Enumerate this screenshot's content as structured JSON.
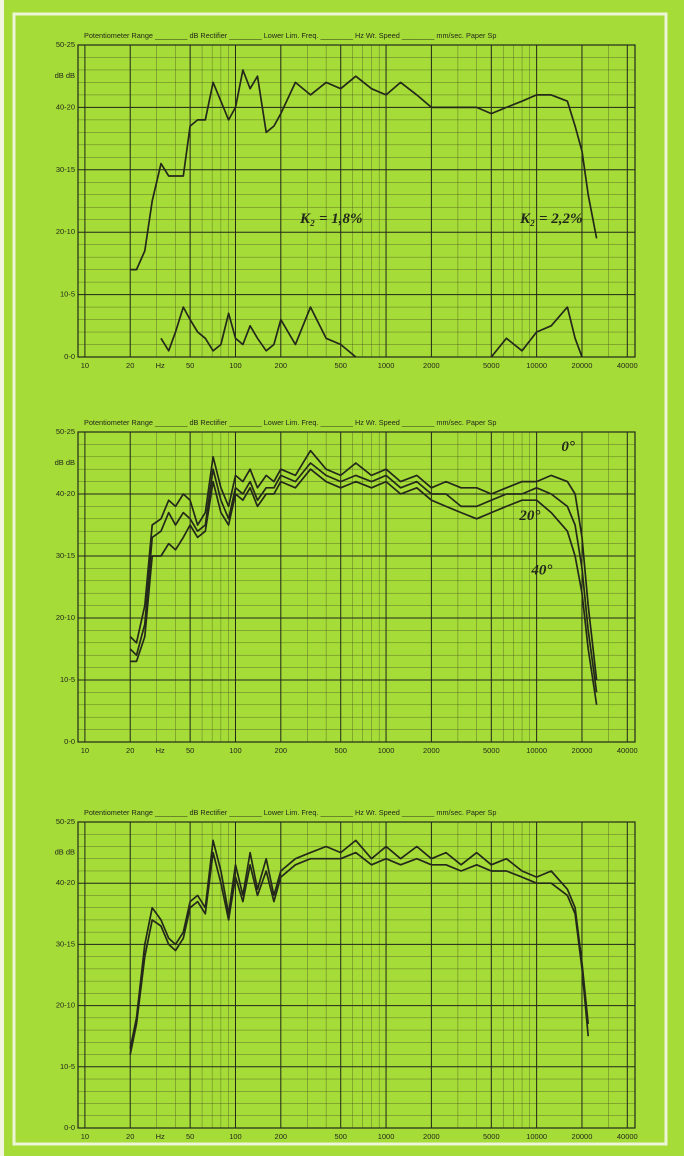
{
  "chart_data": [
    {
      "type": "line",
      "header": "Potentiometer Range ________ dB Rectifier ________ Lower Lim. Freq. ________ Hz  Wr. Speed ________ mm/sec.  Paper Sp",
      "y_unit_label": "dB dB",
      "x_unit_label": "Hz",
      "log_x": true,
      "grid": true,
      "xlim": [
        9,
        45000
      ],
      "ylim": [
        0,
        50
      ],
      "xticks": [
        10,
        20,
        50,
        100,
        200,
        500,
        1000,
        2000,
        5000,
        10000,
        20000,
        40000
      ],
      "yticks": [
        {
          "value": 0,
          "label": "0-0"
        },
        {
          "value": 10,
          "label": "10-5"
        },
        {
          "value": 20,
          "label": "20-10"
        },
        {
          "value": 30,
          "label": "30-15"
        },
        {
          "value": 40,
          "label": "40-20"
        },
        {
          "value": 50,
          "label": "50-25"
        }
      ],
      "x": [
        20,
        22,
        25,
        28,
        32,
        36,
        40,
        45,
        50,
        56,
        63,
        71,
        80,
        90,
        100,
        112,
        125,
        140,
        160,
        180,
        200,
        250,
        315,
        400,
        500,
        630,
        800,
        1000,
        1250,
        1600,
        2000,
        2500,
        3150,
        4000,
        5000,
        6300,
        8000,
        10000,
        12500,
        16000,
        18000,
        20000,
        22000,
        25000
      ],
      "series": [
        {
          "color": "#23281a",
          "values": [
            14,
            14,
            17,
            25,
            31,
            29,
            29,
            29,
            37,
            38,
            38,
            44,
            41,
            38,
            40,
            46,
            43,
            45,
            36,
            37,
            39,
            44,
            42,
            44,
            43,
            45,
            43,
            42,
            44,
            42,
            40,
            40,
            40,
            40,
            39,
            40,
            41,
            42,
            42,
            41,
            37,
            33,
            26,
            19
          ]
        },
        {
          "color": "#23281a",
          "values": [
            null,
            null,
            null,
            null,
            3,
            1,
            4,
            8,
            6,
            4,
            3,
            1,
            2,
            7,
            3,
            2,
            5,
            3,
            1,
            2,
            6,
            2,
            8,
            3,
            2,
            0,
            null,
            null,
            null,
            null,
            null,
            null,
            null,
            null,
            0,
            3,
            1,
            4,
            5,
            8,
            3,
            0,
            null,
            null
          ]
        }
      ],
      "annotations": [
        "K₂ = 1,8%",
        "K₂ = 2,2%"
      ]
    },
    {
      "type": "line",
      "header": "Potentiometer Range ________ dB Rectifier ________ Lower Lim. Freq. ________ Hz  Wr. Speed ________ mm/sec.  Paper Sp",
      "y_unit_label": "dB dB",
      "x_unit_label": "Hz",
      "log_x": true,
      "grid": true,
      "xlim": [
        9,
        45000
      ],
      "ylim": [
        0,
        50
      ],
      "xticks": [
        10,
        20,
        50,
        100,
        200,
        500,
        1000,
        2000,
        5000,
        10000,
        20000,
        40000
      ],
      "yticks": [
        {
          "value": 0,
          "label": "0-0"
        },
        {
          "value": 10,
          "label": "10-5"
        },
        {
          "value": 20,
          "label": "20-10"
        },
        {
          "value": 30,
          "label": "30-15"
        },
        {
          "value": 40,
          "label": "40-20"
        },
        {
          "value": 50,
          "label": "50-25"
        }
      ],
      "x": [
        20,
        22,
        25,
        28,
        32,
        36,
        40,
        45,
        50,
        56,
        63,
        71,
        80,
        90,
        100,
        112,
        125,
        140,
        160,
        180,
        200,
        250,
        315,
        400,
        500,
        630,
        800,
        1000,
        1250,
        1600,
        2000,
        2500,
        3150,
        4000,
        5000,
        6300,
        8000,
        10000,
        12500,
        16000,
        18000,
        20000,
        22000,
        25000
      ],
      "series": [
        {
          "name": "0°",
          "color": "#23281a",
          "values": [
            17,
            16,
            22,
            35,
            36,
            39,
            38,
            40,
            39,
            35,
            37,
            46,
            41,
            38,
            43,
            42,
            44,
            41,
            43,
            42,
            44,
            43,
            47,
            44,
            43,
            45,
            43,
            44,
            42,
            43,
            41,
            42,
            41,
            41,
            40,
            41,
            42,
            42,
            43,
            42,
            40,
            33,
            22,
            10
          ]
        },
        {
          "name": "20°",
          "color": "#23281a",
          "values": [
            15,
            14,
            19,
            33,
            34,
            37,
            35,
            37,
            36,
            34,
            35,
            44,
            39,
            36,
            41,
            40,
            42,
            39,
            41,
            41,
            43,
            42,
            45,
            43,
            42,
            43,
            42,
            43,
            41,
            42,
            40,
            40,
            38,
            38,
            39,
            40,
            40,
            41,
            40,
            38,
            35,
            28,
            18,
            8
          ]
        },
        {
          "name": "40°",
          "color": "#23281a",
          "values": [
            13,
            13,
            17,
            30,
            30,
            32,
            31,
            33,
            35,
            33,
            34,
            42,
            37,
            35,
            40,
            39,
            41,
            38,
            40,
            40,
            42,
            41,
            44,
            42,
            41,
            42,
            41,
            42,
            40,
            41,
            39,
            38,
            37,
            36,
            37,
            38,
            39,
            39,
            37,
            34,
            30,
            24,
            15,
            6
          ]
        }
      ]
    },
    {
      "type": "line",
      "header": "Potentiometer Range ________ dB Rectifier ________ Lower Lim. Freq. ________ Hz  Wr. Speed ________ mm/sec.  Paper Sp",
      "y_unit_label": "dB dB",
      "x_unit_label": "Hz",
      "log_x": true,
      "grid": true,
      "xlim": [
        9,
        45000
      ],
      "ylim": [
        0,
        50
      ],
      "xticks": [
        10,
        20,
        50,
        100,
        200,
        500,
        1000,
        2000,
        5000,
        10000,
        20000,
        40000
      ],
      "yticks": [
        {
          "value": 0,
          "label": "0-0"
        },
        {
          "value": 10,
          "label": "10-5"
        },
        {
          "value": 20,
          "label": "20-10"
        },
        {
          "value": 30,
          "label": "30-15"
        },
        {
          "value": 40,
          "label": "40-20"
        },
        {
          "value": 50,
          "label": "50-25"
        }
      ],
      "x": [
        20,
        22,
        25,
        28,
        32,
        36,
        40,
        45,
        50,
        56,
        63,
        71,
        80,
        90,
        100,
        112,
        125,
        140,
        160,
        180,
        200,
        250,
        315,
        400,
        500,
        630,
        800,
        1000,
        1250,
        1600,
        2000,
        2500,
        3150,
        4000,
        5000,
        6300,
        8000,
        10000,
        12500,
        16000,
        18000,
        20000,
        22000,
        25000
      ],
      "series": [
        {
          "color": "#23281a",
          "values": [
            13,
            18,
            30,
            36,
            34,
            31,
            30,
            32,
            37,
            38,
            36,
            47,
            42,
            35,
            43,
            38,
            45,
            39,
            44,
            38,
            42,
            44,
            45,
            46,
            45,
            47,
            44,
            46,
            44,
            46,
            44,
            45,
            43,
            45,
            43,
            44,
            42,
            41,
            42,
            39,
            36,
            27,
            17,
            null
          ]
        },
        {
          "color": "#23281a",
          "values": [
            12,
            17,
            28,
            34,
            33,
            30,
            29,
            31,
            36,
            37,
            35,
            45,
            40,
            34,
            41,
            37,
            43,
            38,
            42,
            37,
            41,
            43,
            44,
            44,
            44,
            45,
            43,
            44,
            43,
            44,
            43,
            43,
            42,
            43,
            42,
            42,
            41,
            40,
            40,
            38,
            35,
            26,
            15,
            null
          ]
        }
      ]
    }
  ]
}
